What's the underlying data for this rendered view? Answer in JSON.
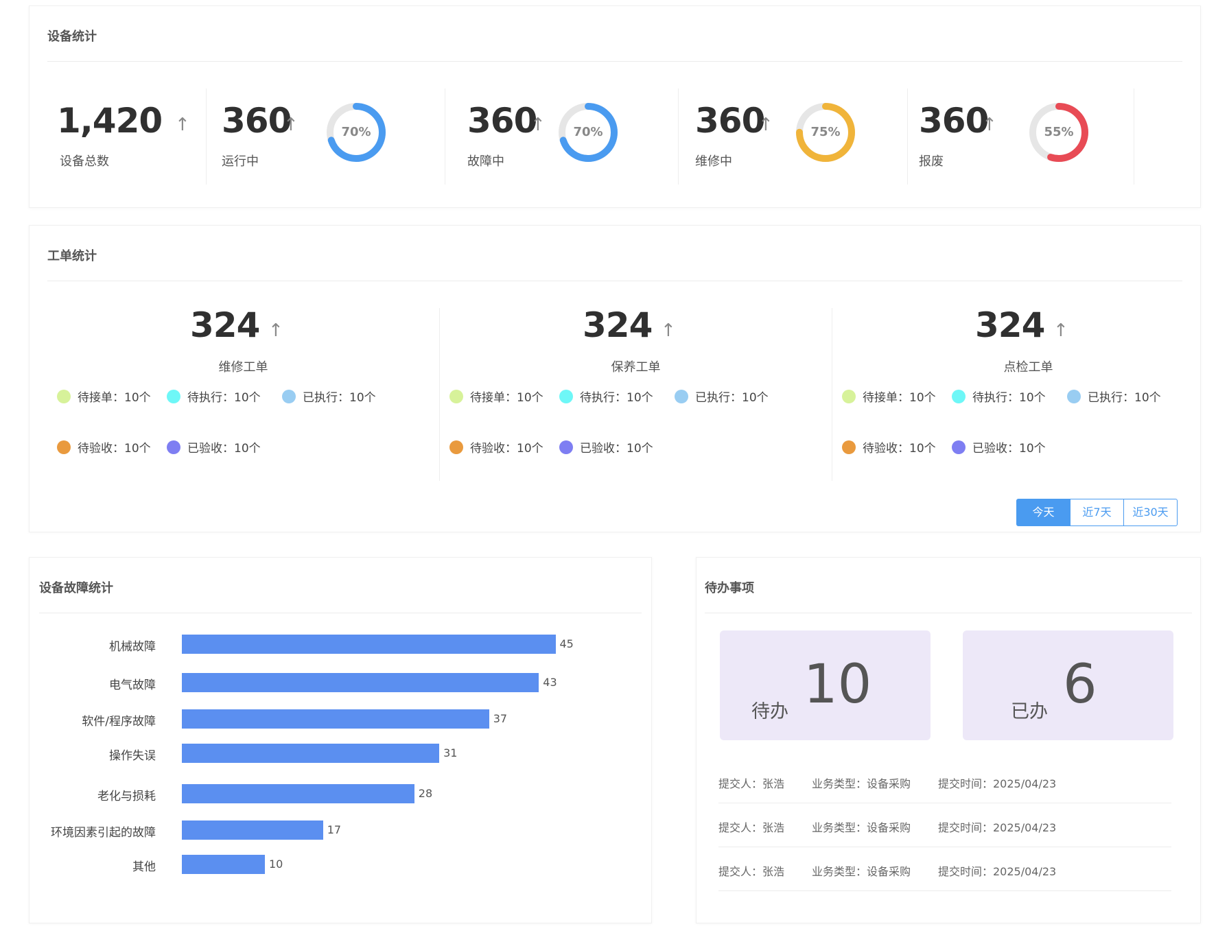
{
  "device_stats": {
    "title": "设备统计",
    "total": {
      "value": "1,420",
      "label": "设备总数"
    },
    "items": [
      {
        "value": "360",
        "label": "运行中",
        "percent": 70,
        "percent_text": "70%",
        "color": "#4a9bf0"
      },
      {
        "value": "360",
        "label": "故障中",
        "percent": 70,
        "percent_text": "70%",
        "color": "#4a9bf0"
      },
      {
        "value": "360",
        "label": "维修中",
        "percent": 75,
        "percent_text": "75%",
        "color": "#f0b43a"
      },
      {
        "value": "360",
        "label": "报废",
        "percent": 55,
        "percent_text": "55%",
        "color": "#e84b55"
      }
    ],
    "arrow": "↑"
  },
  "work_order_stats": {
    "title": "工单统计",
    "columns": [
      {
        "value": "324",
        "label": "维修工单"
      },
      {
        "value": "324",
        "label": "保养工单"
      },
      {
        "value": "324",
        "label": "点检工单"
      }
    ],
    "statuses": [
      {
        "label": "待接单：10个",
        "color": "#d7f29a"
      },
      {
        "label": "待执行：10个",
        "color": "#6ef7f7"
      },
      {
        "label": "已执行：10个",
        "color": "#99cdf2"
      },
      {
        "label": "待验收：10个",
        "color": "#e99a3e"
      },
      {
        "label": "已验收：10个",
        "color": "#7e7ef2"
      }
    ],
    "ranges": [
      "今天",
      "近7天",
      "近30天"
    ],
    "active_range": "今天"
  },
  "fault_stats": {
    "title": "设备故障统计",
    "chart_data": {
      "type": "bar",
      "orientation": "horizontal",
      "categories": [
        "机械故障",
        "电气故障",
        "软件/程序故障",
        "操作失误",
        "老化与损耗",
        "环境因素引起的故障",
        "其他"
      ],
      "values": [
        45,
        43,
        37,
        31,
        28,
        17,
        10
      ],
      "color": "#5b8ff0"
    }
  },
  "todo": {
    "title": "待办事项",
    "pending": {
      "label": "待办",
      "value": "10"
    },
    "done": {
      "label": "已办",
      "value": "6"
    },
    "rows": [
      {
        "submitter": "提交人：张浩",
        "type": "业务类型：设备采购",
        "time": "提交时间：2025/04/23"
      },
      {
        "submitter": "提交人：张浩",
        "type": "业务类型：设备采购",
        "time": "提交时间：2025/04/23"
      },
      {
        "submitter": "提交人：张浩",
        "type": "业务类型：设备采购",
        "time": "提交时间：2025/04/23"
      }
    ]
  }
}
